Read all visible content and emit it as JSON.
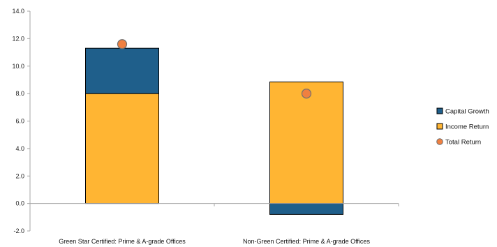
{
  "chart_data": {
    "type": "bar",
    "stacked": true,
    "categories": [
      "Green Star Certified: Prime & A-grade Offices",
      "Non-Green Certified: Prime & A-grade Offices"
    ],
    "series": [
      {
        "name": "Capital Growth",
        "type": "bar",
        "color": "#1f5f8b",
        "values": [
          3.3,
          -0.8
        ]
      },
      {
        "name": "Income Return",
        "type": "bar",
        "color": "#ffb533",
        "values": [
          8.0,
          8.85
        ]
      },
      {
        "name": "Total Return",
        "type": "marker",
        "color": "#f08040",
        "values": [
          11.6,
          8.0
        ]
      }
    ],
    "ylim": [
      -2.0,
      14.0
    ],
    "yticks": [
      "-2.0",
      "0.0",
      "2.0",
      "4.0",
      "6.0",
      "8.0",
      "10.0",
      "12.0",
      "14.0"
    ],
    "grid": false,
    "legend_position": "right"
  }
}
